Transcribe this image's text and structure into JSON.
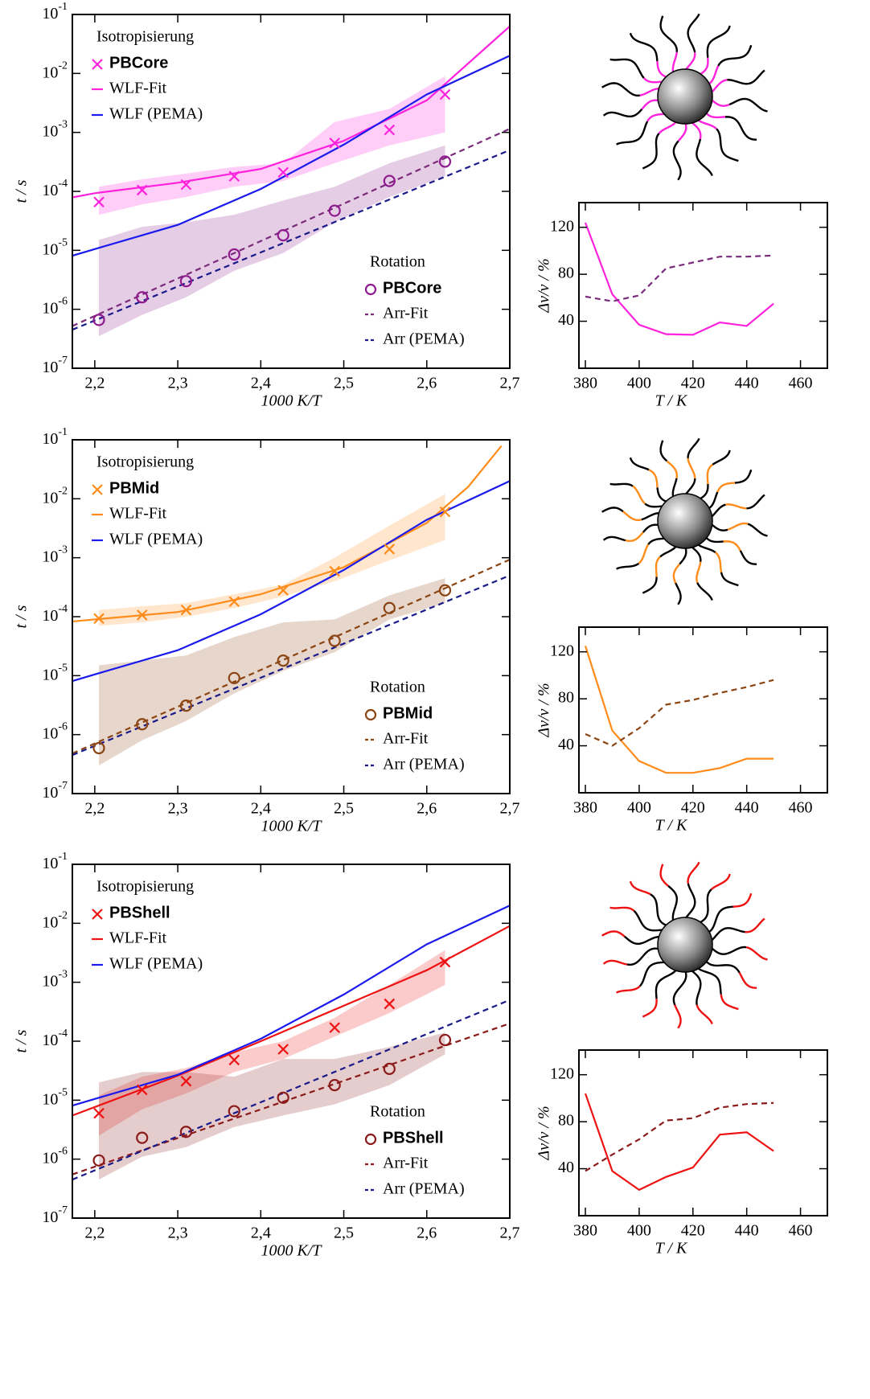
{
  "chart_data": [
    {
      "type": "line",
      "log_y": true,
      "xlabel": "1000 K/T",
      "ylabel": "t / s",
      "xlim": [
        2.173,
        2.7
      ],
      "ylim": [
        1e-07,
        0.1
      ],
      "xticks": [
        {
          "value": 2.2,
          "label": "2,2"
        },
        {
          "value": 2.3,
          "label": "2,3"
        },
        {
          "value": 2.4,
          "label": "2,4"
        },
        {
          "value": 2.5,
          "label": "2,5"
        },
        {
          "value": 2.6,
          "label": "2,6"
        },
        {
          "value": 2.7,
          "label": "2,7"
        }
      ],
      "yticks": [
        {
          "value": 1e-07,
          "label": "10-7"
        },
        {
          "value": 1e-06,
          "label": "10-6"
        },
        {
          "value": 1e-05,
          "label": "10-5"
        },
        {
          "value": 0.0001,
          "label": "10-4"
        },
        {
          "value": 0.001,
          "label": "10-3"
        },
        {
          "value": 0.01,
          "label": "10-2"
        },
        {
          "value": 0.1,
          "label": "10-1"
        }
      ],
      "legend_groups": [
        "Isotropisierung",
        "Rotation"
      ],
      "series": [
        {
          "name": "PBCore",
          "group": 0,
          "style": "markers",
          "marker": "x",
          "color": "#ff22dd",
          "x": [
            2.205,
            2.257,
            2.31,
            2.368,
            2.427,
            2.489,
            2.555,
            2.622
          ],
          "values": [
            6.6e-05,
            0.000105,
            0.00013,
            0.00018,
            0.00021,
            0.00066,
            0.0011,
            0.0044
          ],
          "lower": [
            4e-05,
            6e-05,
            8e-05,
            0.00012,
            0.00015,
            0.0003,
            0.0006,
            0.001
          ],
          "upper": [
            0.00012,
            0.00016,
            0.0002,
            0.00026,
            0.0003,
            0.0015,
            0.0025,
            0.009
          ]
        },
        {
          "name": "WLF-Fit",
          "group": 0,
          "style": "solid",
          "color": "#ff22dd",
          "x": [
            2.173,
            2.2,
            2.3,
            2.4,
            2.5,
            2.6,
            2.7
          ],
          "values": [
            7.9e-05,
            9.3e-05,
            0.00014,
            0.00024,
            0.00072,
            0.0035,
            0.063
          ]
        },
        {
          "name": "WLF (PEMA)",
          "group": 0,
          "style": "solid",
          "color": "#1a1aee",
          "x": [
            2.173,
            2.2,
            2.3,
            2.4,
            2.5,
            2.6,
            2.7
          ],
          "values": [
            8.1e-06,
            1.05e-05,
            2.7e-05,
            0.00011,
            0.00062,
            0.0044,
            0.02
          ]
        },
        {
          "name": "PBCore",
          "group": 1,
          "style": "markers",
          "marker": "o",
          "color": "#8e1a8e",
          "x": [
            2.205,
            2.257,
            2.31,
            2.368,
            2.427,
            2.489,
            2.555,
            2.622
          ],
          "values": [
            6.6e-07,
            1.6e-06,
            3e-06,
            8.5e-06,
            1.8e-05,
            4.7e-05,
            0.00015,
            0.00032
          ],
          "lower": [
            3.5e-07,
            8e-07,
            1.6e-06,
            4.5e-06,
            9e-06,
            3e-05,
            8e-05,
            0.00018
          ],
          "upper": [
            1.5e-05,
            2.5e-05,
            3e-05,
            4e-05,
            7e-05,
            0.00012,
            0.0003,
            0.0006
          ]
        },
        {
          "name": "Arr-Fit",
          "group": 1,
          "style": "dashed",
          "color": "#7a2a7a",
          "x": [
            2.173,
            2.7
          ],
          "values": [
            5.2e-07,
            0.00115
          ]
        },
        {
          "name": "Arr (PEMA)",
          "group": 1,
          "style": "dashed",
          "color": "#1a1a8a",
          "x": [
            2.173,
            2.7
          ],
          "values": [
            4.5e-07,
            0.0005
          ]
        }
      ]
    },
    {
      "type": "line",
      "xlabel": "T / K",
      "ylabel": "Δν/ν / %",
      "xlim": [
        377.6,
        470
      ],
      "ylim": [
        0,
        141
      ],
      "xticks": [
        380,
        400,
        420,
        440,
        460
      ],
      "yticks": [
        40,
        80,
        120
      ],
      "series": [
        {
          "style": "solid",
          "color": "#ff22dd",
          "x": [
            380,
            390,
            400,
            410,
            420,
            430,
            440,
            450
          ],
          "values": [
            124,
            63,
            37,
            29,
            28.5,
            39,
            36,
            55
          ]
        },
        {
          "style": "dashed",
          "color": "#7a2a7a",
          "x": [
            380,
            390,
            400,
            410,
            420,
            430,
            440,
            450
          ],
          "values": [
            61,
            57,
            62,
            85,
            90,
            95,
            95,
            96
          ]
        }
      ]
    },
    {
      "type": "line",
      "log_y": true,
      "xlabel": "1000 K/T",
      "ylabel": "t / s",
      "xlim": [
        2.173,
        2.7
      ],
      "ylim": [
        1e-07,
        0.1
      ],
      "xticks": [
        {
          "value": 2.2,
          "label": "2,2"
        },
        {
          "value": 2.3,
          "label": "2,3"
        },
        {
          "value": 2.4,
          "label": "2,4"
        },
        {
          "value": 2.5,
          "label": "2,5"
        },
        {
          "value": 2.6,
          "label": "2,6"
        },
        {
          "value": 2.7,
          "label": "2,7"
        }
      ],
      "yticks": [
        {
          "value": 1e-07,
          "label": "10-7"
        },
        {
          "value": 1e-06,
          "label": "10-6"
        },
        {
          "value": 1e-05,
          "label": "10-5"
        },
        {
          "value": 0.0001,
          "label": "10-4"
        },
        {
          "value": 0.001,
          "label": "10-3"
        },
        {
          "value": 0.01,
          "label": "10-2"
        },
        {
          "value": 0.1,
          "label": "10-1"
        }
      ],
      "legend_groups": [
        "Isotropisierung",
        "Rotation"
      ],
      "series": [
        {
          "name": "PBMid",
          "group": 0,
          "style": "markers",
          "marker": "x",
          "color": "#ff8c1a",
          "x": [
            2.205,
            2.257,
            2.31,
            2.368,
            2.427,
            2.489,
            2.555,
            2.622
          ],
          "values": [
            9.3e-05,
            0.000107,
            0.00013,
            0.00018,
            0.00028,
            0.00059,
            0.0014,
            0.006
          ],
          "lower": [
            7e-05,
            8e-05,
            0.0001,
            0.00014,
            0.00022,
            0.0004,
            0.0009,
            0.002
          ],
          "upper": [
            0.00013,
            0.00015,
            0.00017,
            0.00024,
            0.00035,
            0.001,
            0.0035,
            0.012
          ]
        },
        {
          "name": "WLF-Fit",
          "group": 0,
          "style": "solid",
          "color": "#ff8c1a",
          "x": [
            2.173,
            2.3,
            2.4,
            2.5,
            2.6,
            2.65,
            2.69
          ],
          "values": [
            8.3e-05,
            0.00012,
            0.00024,
            0.00069,
            0.0039,
            0.016,
            0.079
          ]
        },
        {
          "name": "WLF (PEMA)",
          "group": 0,
          "style": "solid",
          "color": "#1a1aee",
          "x": [
            2.173,
            2.2,
            2.3,
            2.4,
            2.5,
            2.6,
            2.7
          ],
          "values": [
            8.1e-06,
            1.05e-05,
            2.7e-05,
            0.00011,
            0.00062,
            0.0044,
            0.02
          ]
        },
        {
          "name": "PBMid",
          "group": 1,
          "style": "markers",
          "marker": "o",
          "color": "#8b4513",
          "x": [
            2.205,
            2.257,
            2.31,
            2.368,
            2.427,
            2.489,
            2.555,
            2.622
          ],
          "values": [
            5.9e-07,
            1.5e-06,
            3.1e-06,
            9.1e-06,
            1.8e-05,
            3.9e-05,
            0.00014,
            0.00028
          ],
          "lower": [
            3e-07,
            8e-07,
            1.7e-06,
            5e-06,
            1.2e-05,
            2.5e-05,
            9e-05,
            0.00017
          ],
          "upper": [
            1.5e-05,
            1.8e-05,
            2.2e-05,
            4.5e-05,
            8e-05,
            9e-05,
            0.00023,
            0.00045
          ]
        },
        {
          "name": "Arr-Fit",
          "group": 1,
          "style": "dashed",
          "color": "#8b4513",
          "x": [
            2.173,
            2.7
          ],
          "values": [
            4.8e-07,
            0.00093
          ]
        },
        {
          "name": "Arr (PEMA)",
          "group": 1,
          "style": "dashed",
          "color": "#1a1a8a",
          "x": [
            2.173,
            2.7
          ],
          "values": [
            4.5e-07,
            0.0005
          ]
        }
      ]
    },
    {
      "type": "line",
      "xlabel": "T / K",
      "ylabel": "Δν/ν / %",
      "xlim": [
        377.6,
        470
      ],
      "ylim": [
        0,
        141
      ],
      "xticks": [
        380,
        400,
        420,
        440,
        460
      ],
      "yticks": [
        40,
        80,
        120
      ],
      "series": [
        {
          "style": "solid",
          "color": "#ff8c1a",
          "x": [
            380,
            390,
            400,
            410,
            420,
            430,
            440,
            450
          ],
          "values": [
            125,
            53,
            27,
            17,
            17,
            21,
            29,
            29
          ]
        },
        {
          "style": "dashed",
          "color": "#8b4513",
          "x": [
            380,
            390,
            400,
            410,
            420,
            430,
            440,
            450
          ],
          "values": [
            50,
            40,
            55,
            75,
            79,
            85,
            90,
            96
          ]
        }
      ]
    },
    {
      "type": "line",
      "log_y": true,
      "xlabel": "1000 K/T",
      "ylabel": "t / s",
      "xlim": [
        2.173,
        2.7
      ],
      "ylim": [
        1e-07,
        0.1
      ],
      "xticks": [
        {
          "value": 2.2,
          "label": "2,2"
        },
        {
          "value": 2.3,
          "label": "2,3"
        },
        {
          "value": 2.4,
          "label": "2,4"
        },
        {
          "value": 2.5,
          "label": "2,5"
        },
        {
          "value": 2.6,
          "label": "2,6"
        },
        {
          "value": 2.7,
          "label": "2,7"
        }
      ],
      "yticks": [
        {
          "value": 1e-07,
          "label": "10-7"
        },
        {
          "value": 1e-06,
          "label": "10-6"
        },
        {
          "value": 1e-05,
          "label": "10-5"
        },
        {
          "value": 0.0001,
          "label": "10-4"
        },
        {
          "value": 0.001,
          "label": "10-3"
        },
        {
          "value": 0.01,
          "label": "10-2"
        },
        {
          "value": 0.1,
          "label": "10-1"
        }
      ],
      "legend_groups": [
        "Isotropisierung",
        "Rotation"
      ],
      "series": [
        {
          "name": "PBShell",
          "group": 0,
          "style": "markers",
          "marker": "x",
          "color": "#ee1111",
          "x": [
            2.205,
            2.257,
            2.31,
            2.368,
            2.427,
            2.489,
            2.555,
            2.622
          ],
          "values": [
            6e-06,
            1.5e-05,
            2.1e-05,
            4.8e-05,
            7.3e-05,
            0.00017,
            0.00043,
            0.0022
          ],
          "lower": [
            2.5e-06,
            7e-06,
            1.3e-05,
            3e-05,
            5e-05,
            0.00012,
            0.0003,
            0.0009
          ],
          "upper": [
            1.2e-05,
            2.5e-05,
            3.5e-05,
            6.5e-05,
            0.0001,
            0.00025,
            0.0009,
            0.0035
          ]
        },
        {
          "name": "WLF-Fit",
          "group": 0,
          "style": "solid",
          "color": "#ee1111",
          "x": [
            2.173,
            2.3,
            2.4,
            2.5,
            2.6,
            2.7
          ],
          "values": [
            5.5e-06,
            2.6e-05,
            0.0001,
            0.0004,
            0.0016,
            0.009
          ]
        },
        {
          "name": "WLF (PEMA)",
          "group": 0,
          "style": "solid",
          "color": "#1a1aee",
          "x": [
            2.173,
            2.2,
            2.3,
            2.4,
            2.5,
            2.6,
            2.7
          ],
          "values": [
            8.1e-06,
            1.05e-05,
            2.7e-05,
            0.00011,
            0.00062,
            0.0044,
            0.02
          ]
        },
        {
          "name": "PBShell",
          "group": 1,
          "style": "markers",
          "marker": "o",
          "color": "#8b1a1a",
          "x": [
            2.205,
            2.257,
            2.31,
            2.368,
            2.427,
            2.489,
            2.555,
            2.622
          ],
          "values": [
            9.5e-07,
            2.3e-06,
            2.9e-06,
            6.5e-06,
            1.1e-05,
            1.8e-05,
            3.4e-05,
            0.000105
          ],
          "lower": [
            4.5e-07,
            1.1e-06,
            1.6e-06,
            3.5e-06,
            5.5e-06,
            8.5e-06,
            1.8e-05,
            6e-05
          ],
          "upper": [
            2e-05,
            3e-05,
            3e-05,
            2.5e-05,
            5e-05,
            5e-05,
            8e-05,
            0.00014
          ]
        },
        {
          "name": "Arr-Fit",
          "group": 1,
          "style": "dashed",
          "color": "#8b1a1a",
          "x": [
            2.173,
            2.7
          ],
          "values": [
            5.5e-07,
            0.0002
          ]
        },
        {
          "name": "Arr (PEMA)",
          "group": 1,
          "style": "dashed",
          "color": "#1a1a8a",
          "x": [
            2.173,
            2.7
          ],
          "values": [
            4.5e-07,
            0.0005
          ]
        }
      ]
    },
    {
      "type": "line",
      "xlabel": "T / K",
      "ylabel": "Δν/ν / %",
      "xlim": [
        377.6,
        470
      ],
      "ylim": [
        0,
        141
      ],
      "xticks": [
        380,
        400,
        420,
        440,
        460
      ],
      "yticks": [
        40,
        80,
        120
      ],
      "series": [
        {
          "style": "solid",
          "color": "#ee1111",
          "x": [
            380,
            390,
            400,
            410,
            420,
            430,
            440,
            450
          ],
          "values": [
            104,
            38,
            22,
            33,
            41,
            69,
            71,
            55
          ]
        },
        {
          "style": "dashed",
          "color": "#8b1a1a",
          "x": [
            380,
            390,
            400,
            410,
            420,
            430,
            440,
            450
          ],
          "values": [
            38,
            52,
            65,
            81,
            83,
            92,
            95,
            96
          ]
        }
      ]
    }
  ]
}
